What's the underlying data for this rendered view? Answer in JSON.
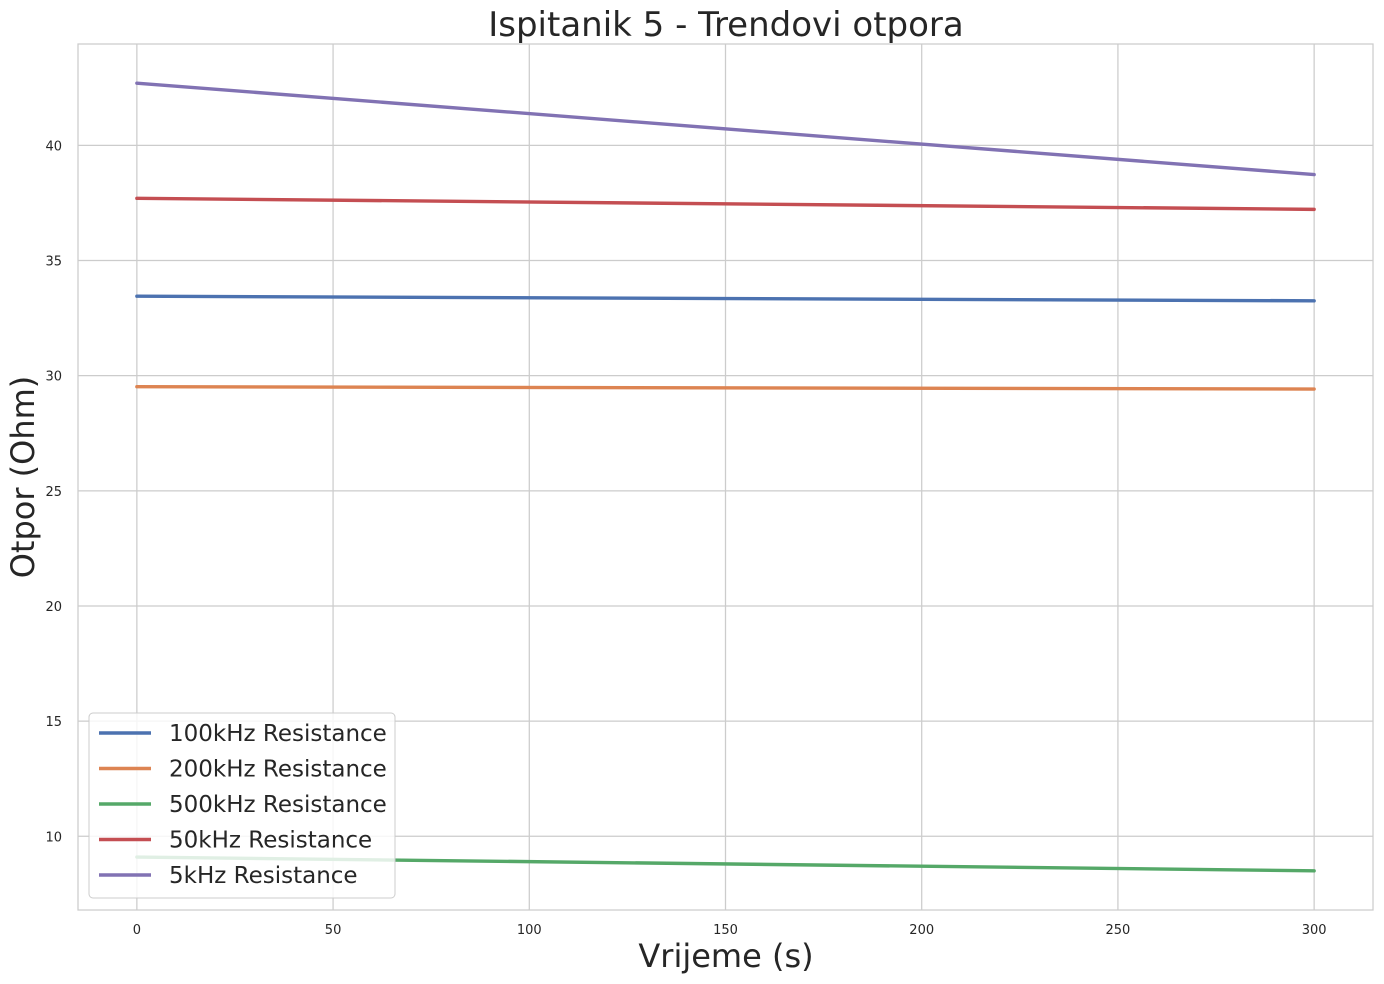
{
  "chart_data": {
    "type": "line",
    "title": "Ispitanik 5 - Trendovi otpora",
    "xlabel": "Vrijeme (s)",
    "ylabel": "Otpor (Ohm)",
    "xlim": [
      -15,
      315
    ],
    "ylim": [
      6.8,
      44.4
    ],
    "xticks": [
      0,
      50,
      100,
      150,
      200,
      250,
      300
    ],
    "yticks": [
      10,
      15,
      20,
      25,
      30,
      35,
      40
    ],
    "grid": true,
    "legend_position": "lower-left",
    "series": [
      {
        "name": "100kHz Resistance",
        "color": "#4c72b0",
        "x": [
          0,
          300
        ],
        "y": [
          33.45,
          33.25
        ]
      },
      {
        "name": "200kHz Resistance",
        "color": "#dd8452",
        "x": [
          0,
          300
        ],
        "y": [
          29.52,
          29.42
        ]
      },
      {
        "name": "500kHz Resistance",
        "color": "#55a868",
        "x": [
          0,
          300
        ],
        "y": [
          9.1,
          8.5
        ]
      },
      {
        "name": "50kHz Resistance",
        "color": "#c44e52",
        "x": [
          0,
          300
        ],
        "y": [
          37.7,
          37.22
        ]
      },
      {
        "name": "5kHz Resistance",
        "color": "#8172b3",
        "x": [
          0,
          300
        ],
        "y": [
          42.7,
          38.73
        ]
      }
    ]
  }
}
